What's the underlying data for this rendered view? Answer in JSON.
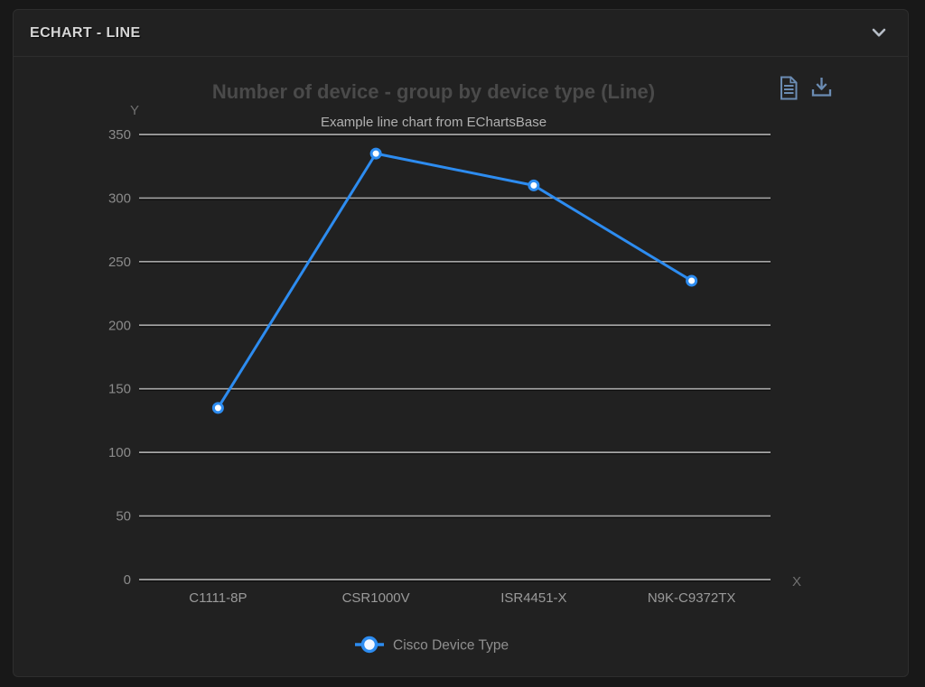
{
  "panel": {
    "title": "ECHART - LINE"
  },
  "toolbox": {
    "icons": [
      "data-view-icon",
      "download-icon"
    ]
  },
  "chart_data": {
    "type": "line",
    "title": "Number of device - group by device type (Line)",
    "subtitle": "Example line chart from EChartsBase",
    "x_axis_name": "X",
    "y_axis_name": "Y",
    "categories": [
      "C1111-8P",
      "CSR1000V",
      "ISR4451-X",
      "N9K-C9372TX"
    ],
    "series": [
      {
        "name": "Cisco Device Type",
        "values": [
          135,
          335,
          310,
          235
        ],
        "color": "#2d8cf0"
      }
    ],
    "ylim": [
      0,
      350
    ],
    "ytick_step": 50,
    "grid": true,
    "legend_position": "bottom"
  },
  "colors": {
    "accent_blue": "#2d8cf0",
    "toolbox_icon": "#6b8cb3",
    "gridline": "#a6a6a6",
    "title_text": "#4a4a4a",
    "subtitle_text": "#b0b0b0"
  }
}
